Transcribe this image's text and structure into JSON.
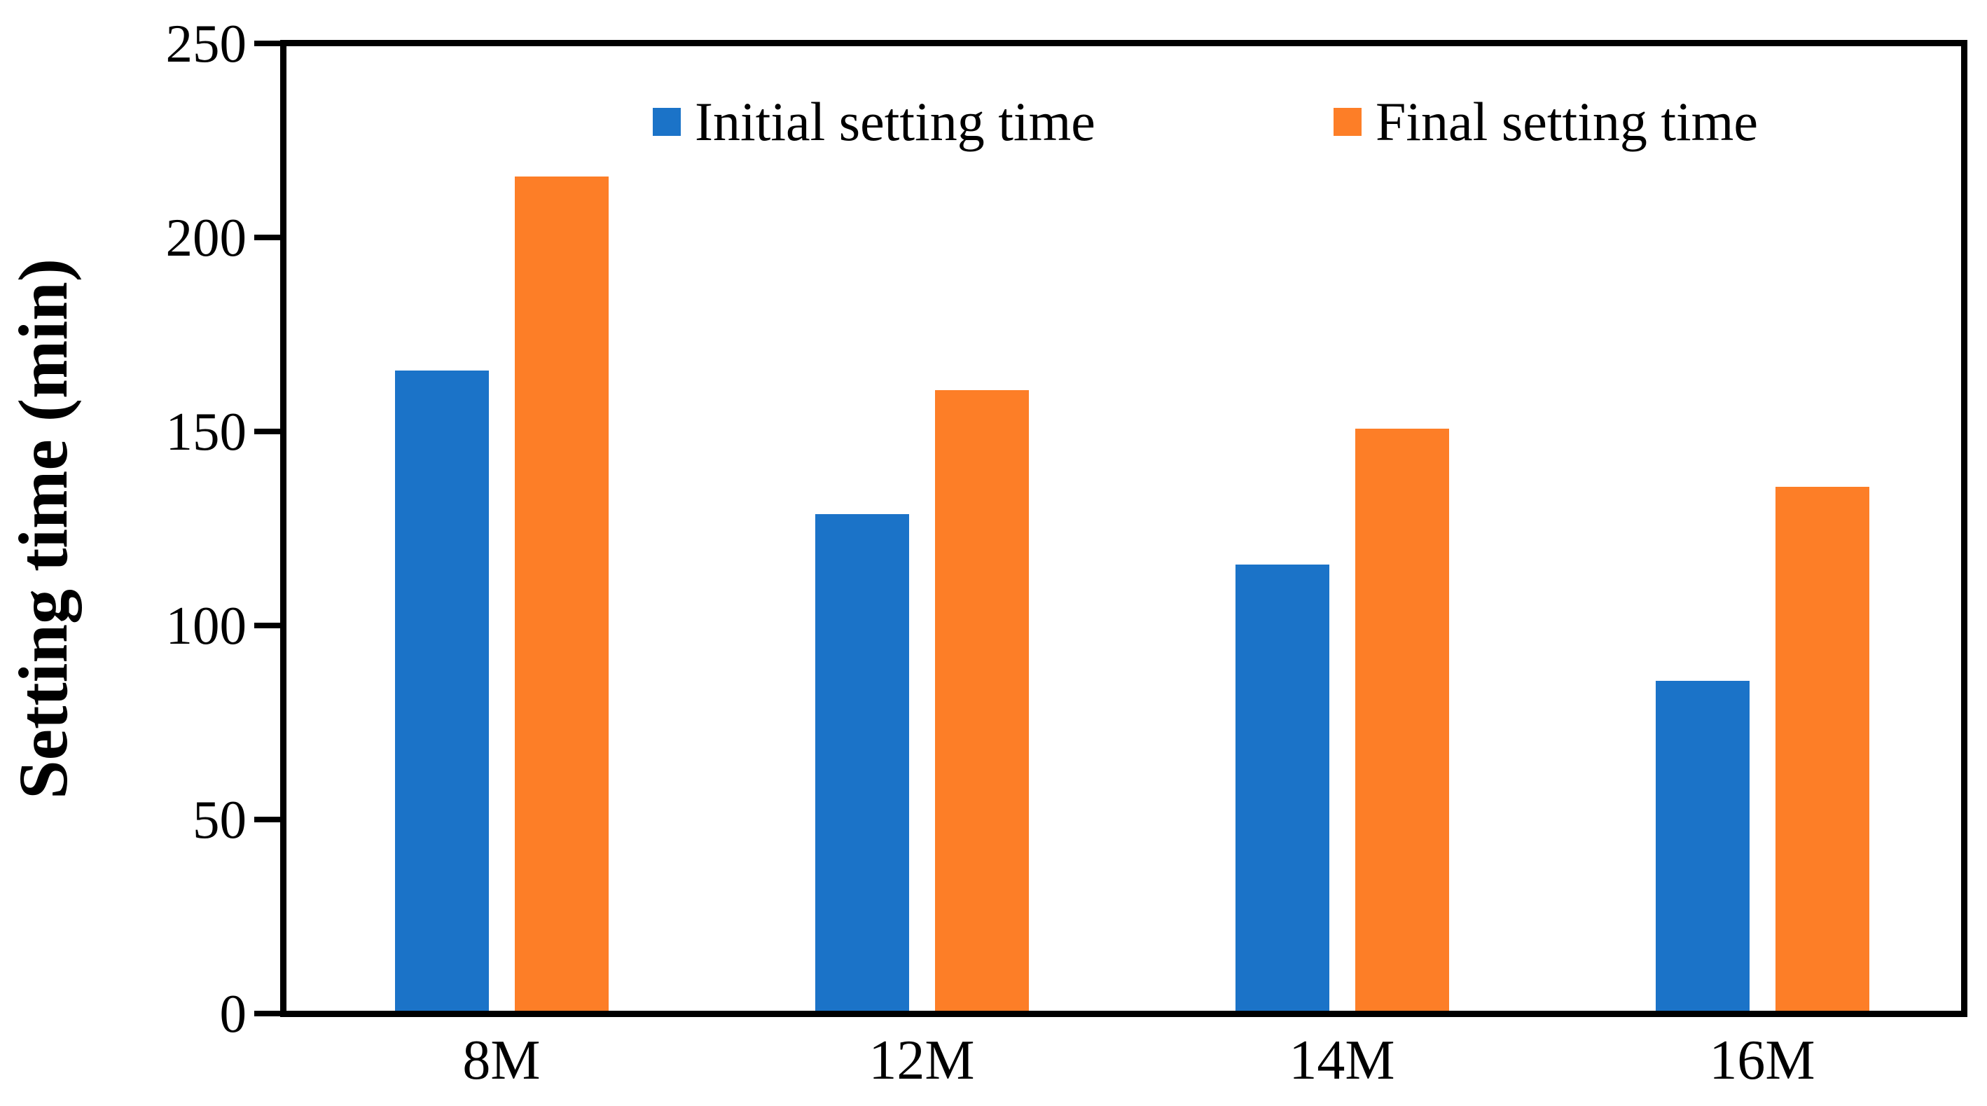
{
  "figure": {
    "background": "#FFFFFF",
    "axis_color": "#000000",
    "text_color": "#000000"
  },
  "chart_data": {
    "type": "bar",
    "title": "",
    "xlabel": "",
    "ylabel": "Setting time (min)",
    "categories": [
      "8M",
      "12M",
      "14M",
      "16M"
    ],
    "series": [
      {
        "name": "Initial setting time",
        "color": "#1B73C8",
        "values": [
          165,
          128,
          115,
          85
        ]
      },
      {
        "name": "Final setting time",
        "color": "#FD7E27",
        "values": [
          215,
          160,
          150,
          135
        ]
      }
    ],
    "ylim": [
      0,
      250
    ],
    "yticks": [
      0,
      50,
      100,
      150,
      200,
      250
    ],
    "grid": false,
    "legend_position": "top-center-inside",
    "legend_entries": [
      "Initial setting time",
      "Final setting time"
    ]
  }
}
